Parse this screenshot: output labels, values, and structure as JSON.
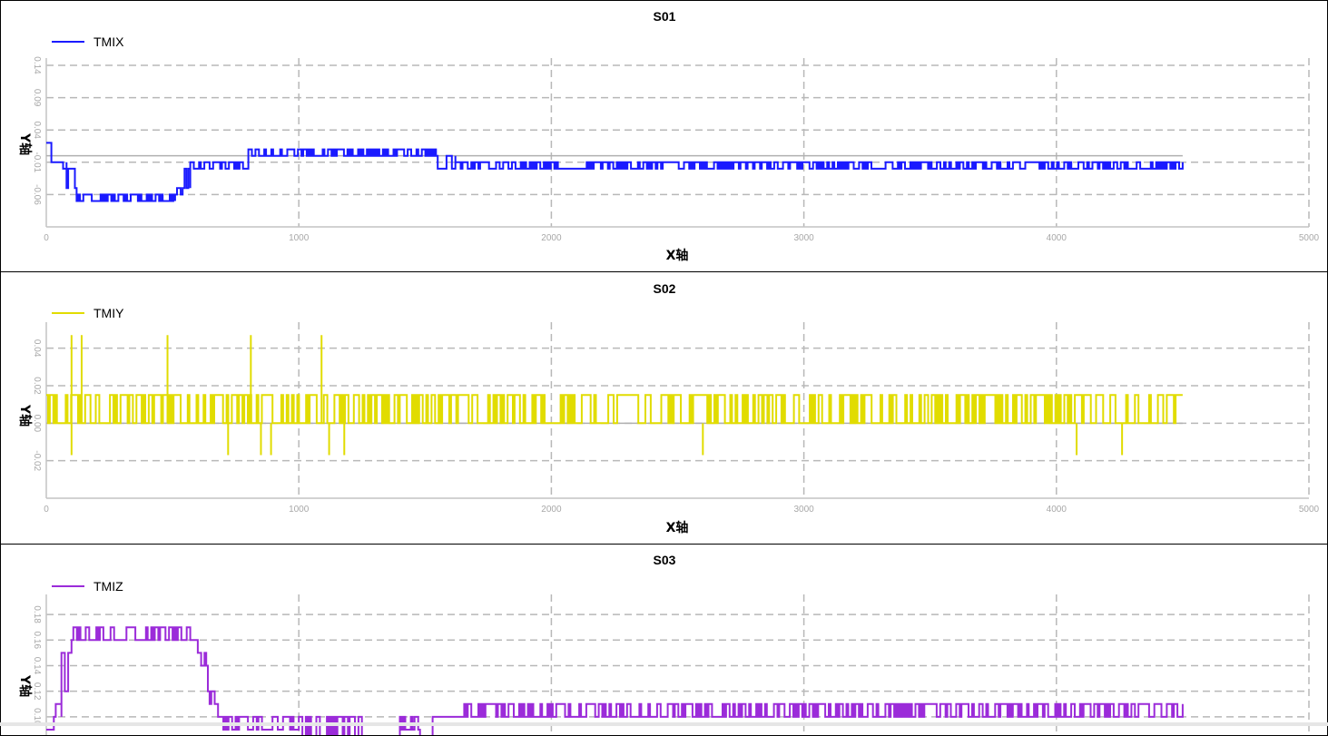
{
  "charts": [
    {
      "title": "S01",
      "xlabel": "X轴",
      "ylabel": "Y轴",
      "legend": "TMIX"
    },
    {
      "title": "S02",
      "xlabel": "X轴",
      "ylabel": "Y轴",
      "legend": "TMIY"
    },
    {
      "title": "S03",
      "xlabel": "",
      "ylabel": "Y轴",
      "legend": "TMIZ"
    }
  ],
  "chart_data": [
    {
      "type": "line",
      "title": "S01",
      "xlabel": "X轴",
      "ylabel": "Y轴",
      "color": "#1a1aff",
      "legend_position": "top-left",
      "grid": true,
      "xlim": [
        0,
        5000
      ],
      "ylim": [
        -0.11,
        0.14
      ],
      "x_ticks": [
        "0",
        "1000",
        "2000",
        "3000",
        "4000",
        "5000"
      ],
      "y_ticks": [
        "-0.06",
        "-0.01",
        "0.04",
        "0.09",
        "0.14"
      ],
      "series": [
        {
          "name": "TMIX",
          "segments": [
            {
              "x0": 0,
              "x1": 20,
              "base": 0.02,
              "alt": 0.02
            },
            {
              "x0": 20,
              "x1": 80,
              "base": -0.02,
              "alt": -0.01
            },
            {
              "x0": 80,
              "x1": 120,
              "base": -0.05,
              "alt": -0.02
            },
            {
              "x0": 120,
              "x1": 180,
              "base": -0.07,
              "alt": -0.06
            },
            {
              "x0": 180,
              "x1": 510,
              "base": -0.06,
              "alt": -0.07
            },
            {
              "x0": 510,
              "x1": 540,
              "base": -0.06,
              "alt": -0.05
            },
            {
              "x0": 540,
              "x1": 570,
              "base": -0.05,
              "alt": -0.02
            },
            {
              "x0": 570,
              "x1": 800,
              "base": -0.01,
              "alt": -0.02
            },
            {
              "x0": 800,
              "x1": 1550,
              "base": 0.0,
              "alt": 0.01
            },
            {
              "x0": 1550,
              "x1": 1620,
              "base": 0.0,
              "alt": -0.02
            },
            {
              "x0": 1620,
              "x1": 2040,
              "base": -0.01,
              "alt": -0.02
            },
            {
              "x0": 2040,
              "x1": 2140,
              "base": -0.02,
              "alt": -0.02
            },
            {
              "x0": 2140,
              "x1": 4500,
              "base": -0.01,
              "alt": -0.02
            }
          ]
        }
      ]
    },
    {
      "type": "line",
      "title": "S02",
      "xlabel": "X轴",
      "ylabel": "Y轴",
      "color": "#e1dc00",
      "legend_position": "top-left",
      "grid": true,
      "xlim": [
        0,
        5000
      ],
      "ylim": [
        -0.04,
        0.05
      ],
      "x_ticks": [
        "0",
        "1000",
        "2000",
        "3000",
        "4000",
        "5000"
      ],
      "y_ticks": [
        "-0.02",
        "0.00",
        "0.02",
        "0.04"
      ],
      "series": [
        {
          "name": "TMIY",
          "segments": [
            {
              "x0": 0,
              "x1": 4500,
              "base": 0.0,
              "alt": 0.015
            }
          ],
          "spikes": [
            {
              "x": 100,
              "y": 0.047
            },
            {
              "x": 140,
              "y": 0.047
            },
            {
              "x": 480,
              "y": 0.047
            },
            {
              "x": 810,
              "y": 0.047
            },
            {
              "x": 1090,
              "y": 0.047
            },
            {
              "x": 100,
              "y": -0.017
            },
            {
              "x": 720,
              "y": -0.017
            },
            {
              "x": 850,
              "y": -0.017
            },
            {
              "x": 890,
              "y": -0.017
            },
            {
              "x": 1120,
              "y": -0.017
            },
            {
              "x": 1180,
              "y": -0.017
            },
            {
              "x": 2600,
              "y": -0.017
            },
            {
              "x": 4080,
              "y": -0.017
            },
            {
              "x": 4260,
              "y": -0.017
            }
          ]
        }
      ]
    },
    {
      "type": "line",
      "title": "S03",
      "xlabel": "",
      "ylabel": "Y轴",
      "color": "#9b2bd9",
      "legend_position": "top-left",
      "grid": true,
      "xlim": [
        0,
        5000
      ],
      "ylim": [
        0.085,
        0.19
      ],
      "x_ticks": [],
      "y_ticks": [
        "0.10",
        "0.12",
        "0.14",
        "0.16",
        "0.18"
      ],
      "series": [
        {
          "name": "TMIZ",
          "segments": [
            {
              "x0": 0,
              "x1": 30,
              "base": 0.09,
              "alt": 0.09
            },
            {
              "x0": 30,
              "x1": 60,
              "base": 0.11,
              "alt": 0.1
            },
            {
              "x0": 60,
              "x1": 100,
              "base": 0.15,
              "alt": 0.12
            },
            {
              "x0": 100,
              "x1": 570,
              "base": 0.16,
              "alt": 0.17
            },
            {
              "x0": 570,
              "x1": 600,
              "base": 0.15,
              "alt": 0.16
            },
            {
              "x0": 600,
              "x1": 640,
              "base": 0.14,
              "alt": 0.15
            },
            {
              "x0": 640,
              "x1": 680,
              "base": 0.12,
              "alt": 0.11
            },
            {
              "x0": 680,
              "x1": 1000,
              "base": 0.09,
              "alt": 0.1
            },
            {
              "x0": 1000,
              "x1": 1250,
              "base": 0.08,
              "alt": 0.1
            },
            {
              "x0": 1250,
              "x1": 1400,
              "base": 0.08,
              "alt": 0.08
            },
            {
              "x0": 1400,
              "x1": 1480,
              "base": 0.09,
              "alt": 0.1
            },
            {
              "x0": 1480,
              "x1": 1530,
              "base": 0.08,
              "alt": 0.08
            },
            {
              "x0": 1530,
              "x1": 1620,
              "base": 0.1,
              "alt": 0.1
            },
            {
              "x0": 1620,
              "x1": 4500,
              "base": 0.11,
              "alt": 0.1
            }
          ]
        }
      ]
    }
  ]
}
